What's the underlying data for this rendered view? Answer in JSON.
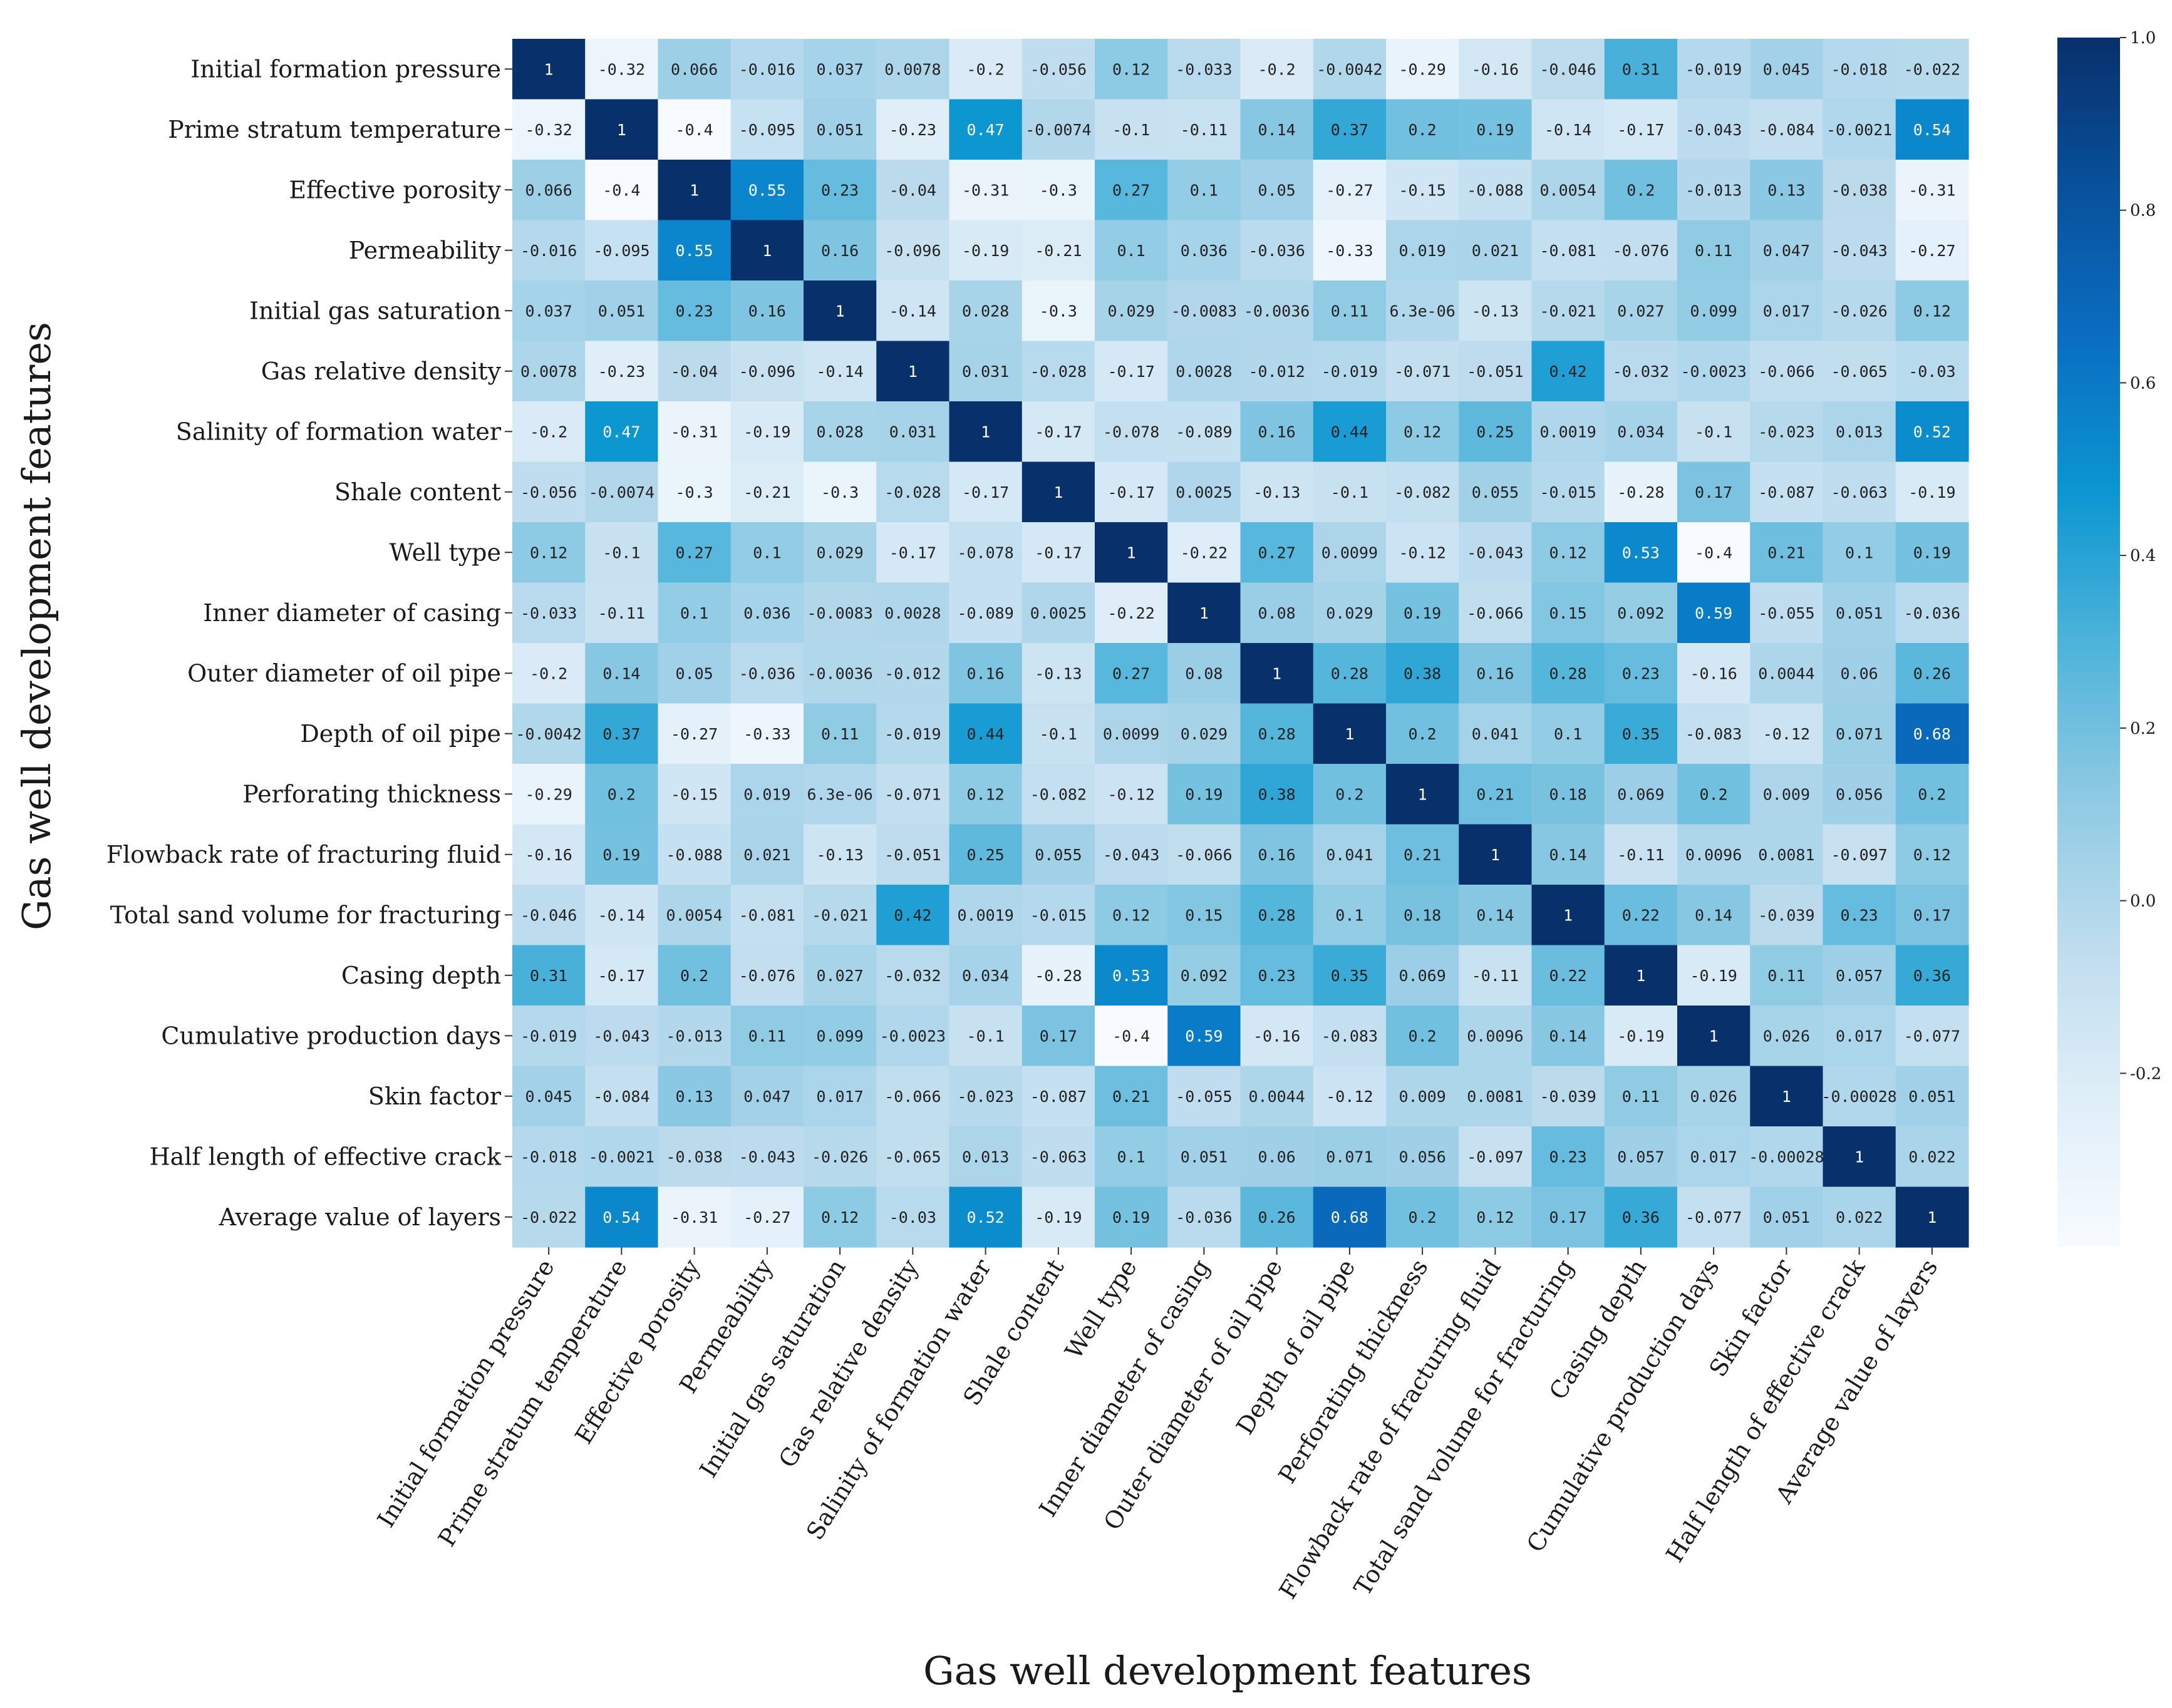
{
  "chart_data": {
    "type": "heatmap",
    "title": "",
    "xlabel": "Gas well development features",
    "ylabel": "Gas well development features",
    "colormap": "Blues",
    "color_range": [
      -0.4,
      1.0
    ],
    "colorbar_ticks": [
      "1.0",
      "0.8",
      "0.6",
      "0.4",
      "0.2",
      "0.0",
      "-0.2"
    ],
    "labels": [
      "Initial formation pressure",
      "Prime stratum temperature",
      "Effective porosity",
      "Permeability",
      "Initial gas saturation",
      "Gas relative density",
      "Salinity of formation water",
      "Shale content",
      "Well type",
      "Inner diameter of casing",
      "Outer diameter of oil pipe",
      "Depth of oil pipe",
      "Perforating thickness",
      "Flowback rate of fracturing fluid",
      "Total sand volume for fracturing",
      "Casing depth",
      "Cumulative production days",
      "Skin factor",
      "Half length of effective crack",
      "Average value of layers"
    ],
    "matrix": [
      [
        "1",
        "-0.32",
        "0.066",
        "-0.016",
        "0.037",
        "0.0078",
        "-0.2",
        "-0.056",
        "0.12",
        "-0.033",
        "-0.2",
        "-0.0042",
        "-0.29",
        "-0.16",
        "-0.046",
        "0.31",
        "-0.019",
        "0.045",
        "-0.018",
        "-0.022"
      ],
      [
        "-0.32",
        "1",
        "-0.4",
        "-0.095",
        "0.051",
        "-0.23",
        "0.47",
        "-0.0074",
        "-0.1",
        "-0.11",
        "0.14",
        "0.37",
        "0.2",
        "0.19",
        "-0.14",
        "-0.17",
        "-0.043",
        "-0.084",
        "-0.0021",
        "0.54"
      ],
      [
        "0.066",
        "-0.4",
        "1",
        "0.55",
        "0.23",
        "-0.04",
        "-0.31",
        "-0.3",
        "0.27",
        "0.1",
        "0.05",
        "-0.27",
        "-0.15",
        "-0.088",
        "0.0054",
        "0.2",
        "-0.013",
        "0.13",
        "-0.038",
        "-0.31"
      ],
      [
        "-0.016",
        "-0.095",
        "0.55",
        "1",
        "0.16",
        "-0.096",
        "-0.19",
        "-0.21",
        "0.1",
        "0.036",
        "-0.036",
        "-0.33",
        "0.019",
        "0.021",
        "-0.081",
        "-0.076",
        "0.11",
        "0.047",
        "-0.043",
        "-0.27"
      ],
      [
        "0.037",
        "0.051",
        "0.23",
        "0.16",
        "1",
        "-0.14",
        "0.028",
        "-0.3",
        "0.029",
        "-0.0083",
        "-0.0036",
        "0.11",
        "6.3e-06",
        "-0.13",
        "-0.021",
        "0.027",
        "0.099",
        "0.017",
        "-0.026",
        "0.12"
      ],
      [
        "0.0078",
        "-0.23",
        "-0.04",
        "-0.096",
        "-0.14",
        "1",
        "0.031",
        "-0.028",
        "-0.17",
        "0.0028",
        "-0.012",
        "-0.019",
        "-0.071",
        "-0.051",
        "0.42",
        "-0.032",
        "-0.0023",
        "-0.066",
        "-0.065",
        "-0.03"
      ],
      [
        "-0.2",
        "0.47",
        "-0.31",
        "-0.19",
        "0.028",
        "0.031",
        "1",
        "-0.17",
        "-0.078",
        "-0.089",
        "0.16",
        "0.44",
        "0.12",
        "0.25",
        "0.0019",
        "0.034",
        "-0.1",
        "-0.023",
        "0.013",
        "0.52"
      ],
      [
        "-0.056",
        "-0.0074",
        "-0.3",
        "-0.21",
        "-0.3",
        "-0.028",
        "-0.17",
        "1",
        "-0.17",
        "0.0025",
        "-0.13",
        "-0.1",
        "-0.082",
        "0.055",
        "-0.015",
        "-0.28",
        "0.17",
        "-0.087",
        "-0.063",
        "-0.19"
      ],
      [
        "0.12",
        "-0.1",
        "0.27",
        "0.1",
        "0.029",
        "-0.17",
        "-0.078",
        "-0.17",
        "1",
        "-0.22",
        "0.27",
        "0.0099",
        "-0.12",
        "-0.043",
        "0.12",
        "0.53",
        "-0.4",
        "0.21",
        "0.1",
        "0.19"
      ],
      [
        "-0.033",
        "-0.11",
        "0.1",
        "0.036",
        "-0.0083",
        "0.0028",
        "-0.089",
        "0.0025",
        "-0.22",
        "1",
        "0.08",
        "0.029",
        "0.19",
        "-0.066",
        "0.15",
        "0.092",
        "0.59",
        "-0.055",
        "0.051",
        "-0.036"
      ],
      [
        "-0.2",
        "0.14",
        "0.05",
        "-0.036",
        "-0.0036",
        "-0.012",
        "0.16",
        "-0.13",
        "0.27",
        "0.08",
        "1",
        "0.28",
        "0.38",
        "0.16",
        "0.28",
        "0.23",
        "-0.16",
        "0.0044",
        "0.06",
        "0.26"
      ],
      [
        "-0.0042",
        "0.37",
        "-0.27",
        "-0.33",
        "0.11",
        "-0.019",
        "0.44",
        "-0.1",
        "0.0099",
        "0.029",
        "0.28",
        "1",
        "0.2",
        "0.041",
        "0.1",
        "0.35",
        "-0.083",
        "-0.12",
        "0.071",
        "0.68"
      ],
      [
        "-0.29",
        "0.2",
        "-0.15",
        "0.019",
        "6.3e-06",
        "-0.071",
        "0.12",
        "-0.082",
        "-0.12",
        "0.19",
        "0.38",
        "0.2",
        "1",
        "0.21",
        "0.18",
        "0.069",
        "0.2",
        "0.009",
        "0.056",
        "0.2"
      ],
      [
        "-0.16",
        "0.19",
        "-0.088",
        "0.021",
        "-0.13",
        "-0.051",
        "0.25",
        "0.055",
        "-0.043",
        "-0.066",
        "0.16",
        "0.041",
        "0.21",
        "1",
        "0.14",
        "-0.11",
        "0.0096",
        "0.0081",
        "-0.097",
        "0.12"
      ],
      [
        "-0.046",
        "-0.14",
        "0.0054",
        "-0.081",
        "-0.021",
        "0.42",
        "0.0019",
        "-0.015",
        "0.12",
        "0.15",
        "0.28",
        "0.1",
        "0.18",
        "0.14",
        "1",
        "0.22",
        "0.14",
        "-0.039",
        "0.23",
        "0.17"
      ],
      [
        "0.31",
        "-0.17",
        "0.2",
        "-0.076",
        "0.027",
        "-0.032",
        "0.034",
        "-0.28",
        "0.53",
        "0.092",
        "0.23",
        "0.35",
        "0.069",
        "-0.11",
        "0.22",
        "1",
        "-0.19",
        "0.11",
        "0.057",
        "0.36"
      ],
      [
        "-0.019",
        "-0.043",
        "-0.013",
        "0.11",
        "0.099",
        "-0.0023",
        "-0.1",
        "0.17",
        "-0.4",
        "0.59",
        "-0.16",
        "-0.083",
        "0.2",
        "0.0096",
        "0.14",
        "-0.19",
        "1",
        "0.026",
        "0.017",
        "-0.077"
      ],
      [
        "0.045",
        "-0.084",
        "0.13",
        "0.047",
        "0.017",
        "-0.066",
        "-0.023",
        "-0.087",
        "0.21",
        "-0.055",
        "0.0044",
        "-0.12",
        "0.009",
        "0.0081",
        "-0.039",
        "0.11",
        "0.026",
        "1",
        "-0.00028",
        "0.051"
      ],
      [
        "-0.018",
        "-0.0021",
        "-0.038",
        "-0.043",
        "-0.026",
        "-0.065",
        "0.013",
        "-0.063",
        "0.1",
        "0.051",
        "0.06",
        "0.071",
        "0.056",
        "-0.097",
        "0.23",
        "0.057",
        "0.017",
        "-0.00028",
        "1",
        "0.022"
      ],
      [
        "-0.022",
        "0.54",
        "-0.31",
        "-0.27",
        "0.12",
        "-0.03",
        "0.52",
        "-0.19",
        "0.19",
        "-0.036",
        "0.26",
        "0.68",
        "0.2",
        "0.12",
        "0.17",
        "0.36",
        "-0.077",
        "0.051",
        "0.022",
        "1"
      ]
    ]
  }
}
